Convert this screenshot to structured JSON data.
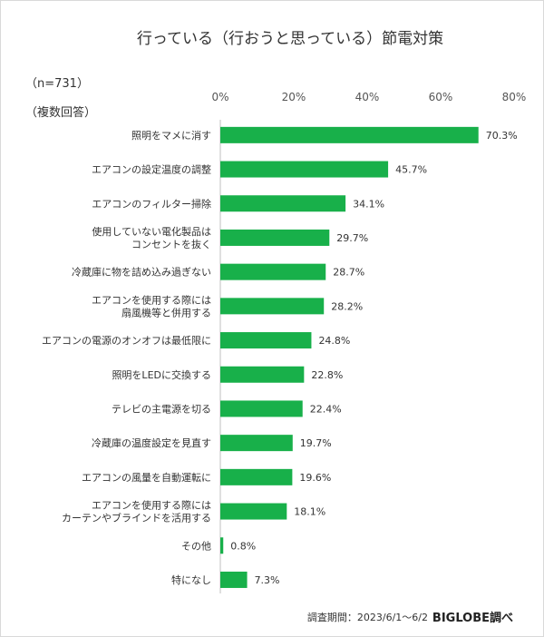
{
  "chart_data": {
    "type": "bar",
    "orientation": "horizontal",
    "title": "行っている（行おうと思っている）節電対策",
    "sample_size": "（n=731）",
    "note": "（複数回答）",
    "categories": [
      "照明をマメに消す",
      "エアコンの設定温度の調整",
      "エアコンのフィルター掃除",
      "使用していない電化製品は\nコンセントを抜く",
      "冷蔵庫に物を詰め込み過ぎない",
      "エアコンを使用する際には\n扇風機等と併用する",
      "エアコンの電源のオンオフは最低限に",
      "照明をLEDに交換する",
      "テレビの主電源を切る",
      "冷蔵庫の温度設定を見直す",
      "エアコンの風量を自動運転に",
      "エアコンを使用する際には\nカーテンやブラインドを活用する",
      "その他",
      "特になし"
    ],
    "values": [
      70.3,
      45.7,
      34.1,
      29.7,
      28.7,
      28.2,
      24.8,
      22.8,
      22.4,
      19.7,
      19.6,
      18.1,
      0.8,
      7.3
    ],
    "value_labels": [
      "70.3%",
      "45.7%",
      "34.1%",
      "29.7%",
      "28.7%",
      "28.2%",
      "24.8%",
      "22.8%",
      "22.4%",
      "19.7%",
      "19.6%",
      "18.1%",
      "0.8%",
      "7.3%"
    ],
    "xlim": [
      0,
      80
    ],
    "x_ticks": [
      0,
      20,
      40,
      60,
      80
    ],
    "x_tick_labels": [
      "0%",
      "20%",
      "40%",
      "60%",
      "80%"
    ],
    "axis_position": "top",
    "bar_color": "#18b04a",
    "grid": false,
    "legend": "none"
  },
  "footer": {
    "period": "調査期間：2023/6/1～6/2",
    "brand": "BIGLOBE調べ"
  }
}
